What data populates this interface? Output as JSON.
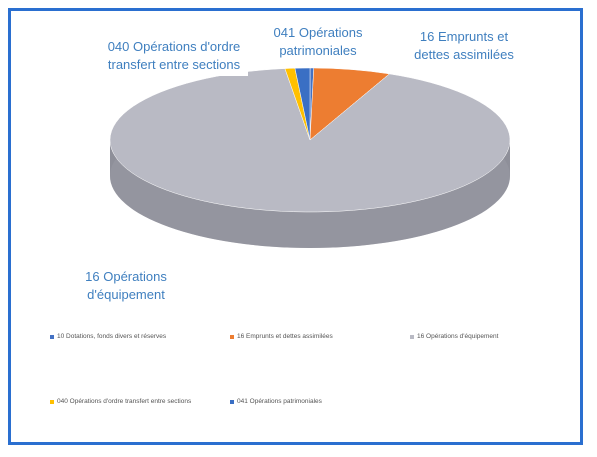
{
  "chart_data": {
    "type": "pie3d",
    "categories": [
      "10 Dotations, fonds divers et réserves",
      "16 Emprunts et dettes assimilées",
      "16 Opérations d'équipement",
      "040 Opérations d'ordre transfert entre sections",
      "041 Opérations patrimoniales"
    ],
    "values": [
      0.3,
      6.2,
      91.5,
      0.8,
      1.2
    ],
    "colors": [
      "#4472c4",
      "#ed7d31",
      "#b9bac4",
      "#ffc000",
      "#3a6fc4"
    ],
    "legend": "bottom"
  }
}
